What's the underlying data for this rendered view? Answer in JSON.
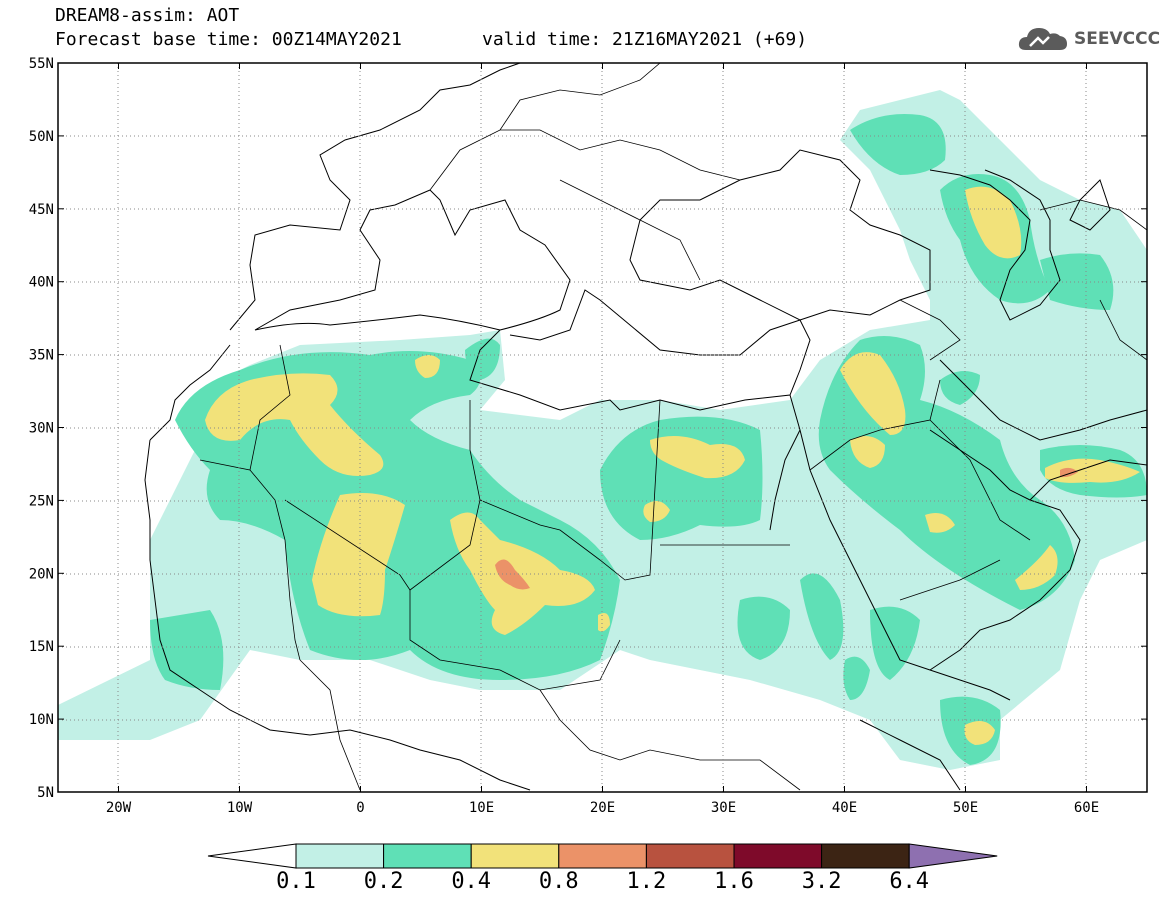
{
  "header": {
    "title_line1": "DREAM8-assim: AOT",
    "title_line2": "Forecast base time: 00Z14MAY2021",
    "valid_time": "valid time: 21Z16MAY2021 (+69)"
  },
  "logo": {
    "text": "SEEVCCC",
    "icon": "cloud-icon"
  },
  "axes": {
    "lat_labels": [
      "55N",
      "50N",
      "45N",
      "40N",
      "35N",
      "30N",
      "25N",
      "20N",
      "15N",
      "10N",
      "5N"
    ],
    "lon_labels": [
      "20W",
      "10W",
      "0",
      "10E",
      "20E",
      "30E",
      "40E",
      "50E",
      "60E"
    ],
    "lon_range": [
      -25,
      65
    ],
    "lat_range": [
      5,
      55
    ]
  },
  "colorbar": {
    "levels": [
      "0.1",
      "0.2",
      "0.4",
      "0.8",
      "1.2",
      "1.6",
      "3.2",
      "6.4"
    ],
    "colors": [
      "#ffffff",
      "#c2f0e6",
      "#5fe0b6",
      "#f2e27a",
      "#eb9268",
      "#b8523f",
      "#7e0a2a",
      "#3c2414",
      "#8e70b0"
    ]
  }
}
